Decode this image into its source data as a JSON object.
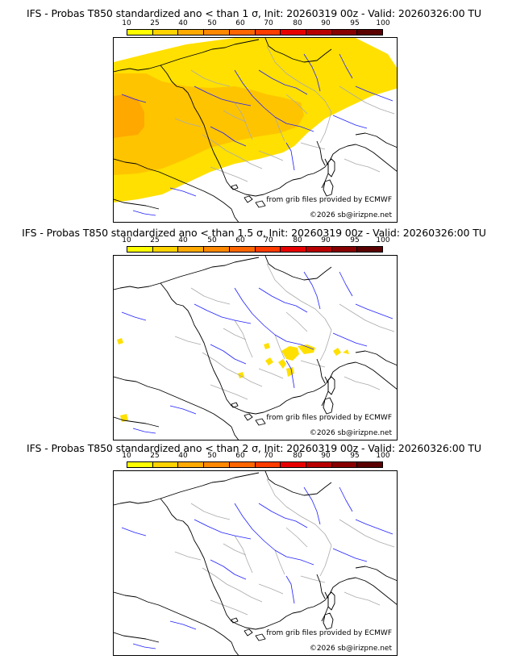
{
  "colors": {
    "scale": [
      "#ffff00",
      "#ffd400",
      "#ffaa00",
      "#ff8800",
      "#ff6600",
      "#ff3c00",
      "#e80000",
      "#b80000",
      "#880000",
      "#5a0000"
    ],
    "land_line": "#000000",
    "river": "#2020ff",
    "border": "#aaaaaa",
    "prob_low": "#ffe000",
    "prob_mid": "#ffc400",
    "prob_high": "#ffa800"
  },
  "scale_ticks": [
    "10",
    "25",
    "40",
    "50",
    "60",
    "70",
    "80",
    "90",
    "95",
    "100"
  ],
  "panels": [
    {
      "title": "IFS - Probas T850  standardized ano < than 1 σ, Init: 20260319 00z - Valid: 20260326:00 TU",
      "source": "from grib files provided by ECMWF",
      "copyright": "©2026 sb@irizpne.net",
      "coverage": "wide"
    },
    {
      "title": "IFS - Probas T850  standardized ano < than 1.5 σ, Init: 20260319 00z - Valid: 20260326:00 TU",
      "source": "from grib files provided by ECMWF",
      "copyright": "©2026 sb@irizpne.net",
      "coverage": "spots"
    },
    {
      "title": "IFS - Probas T850  standardized ano < than 2 σ, Init: 20260319 00z - Valid: 20260326:00 TU",
      "source": "from grib files provided by ECMWF",
      "copyright": "©2026 sb@irizpne.net",
      "coverage": "none"
    }
  ]
}
